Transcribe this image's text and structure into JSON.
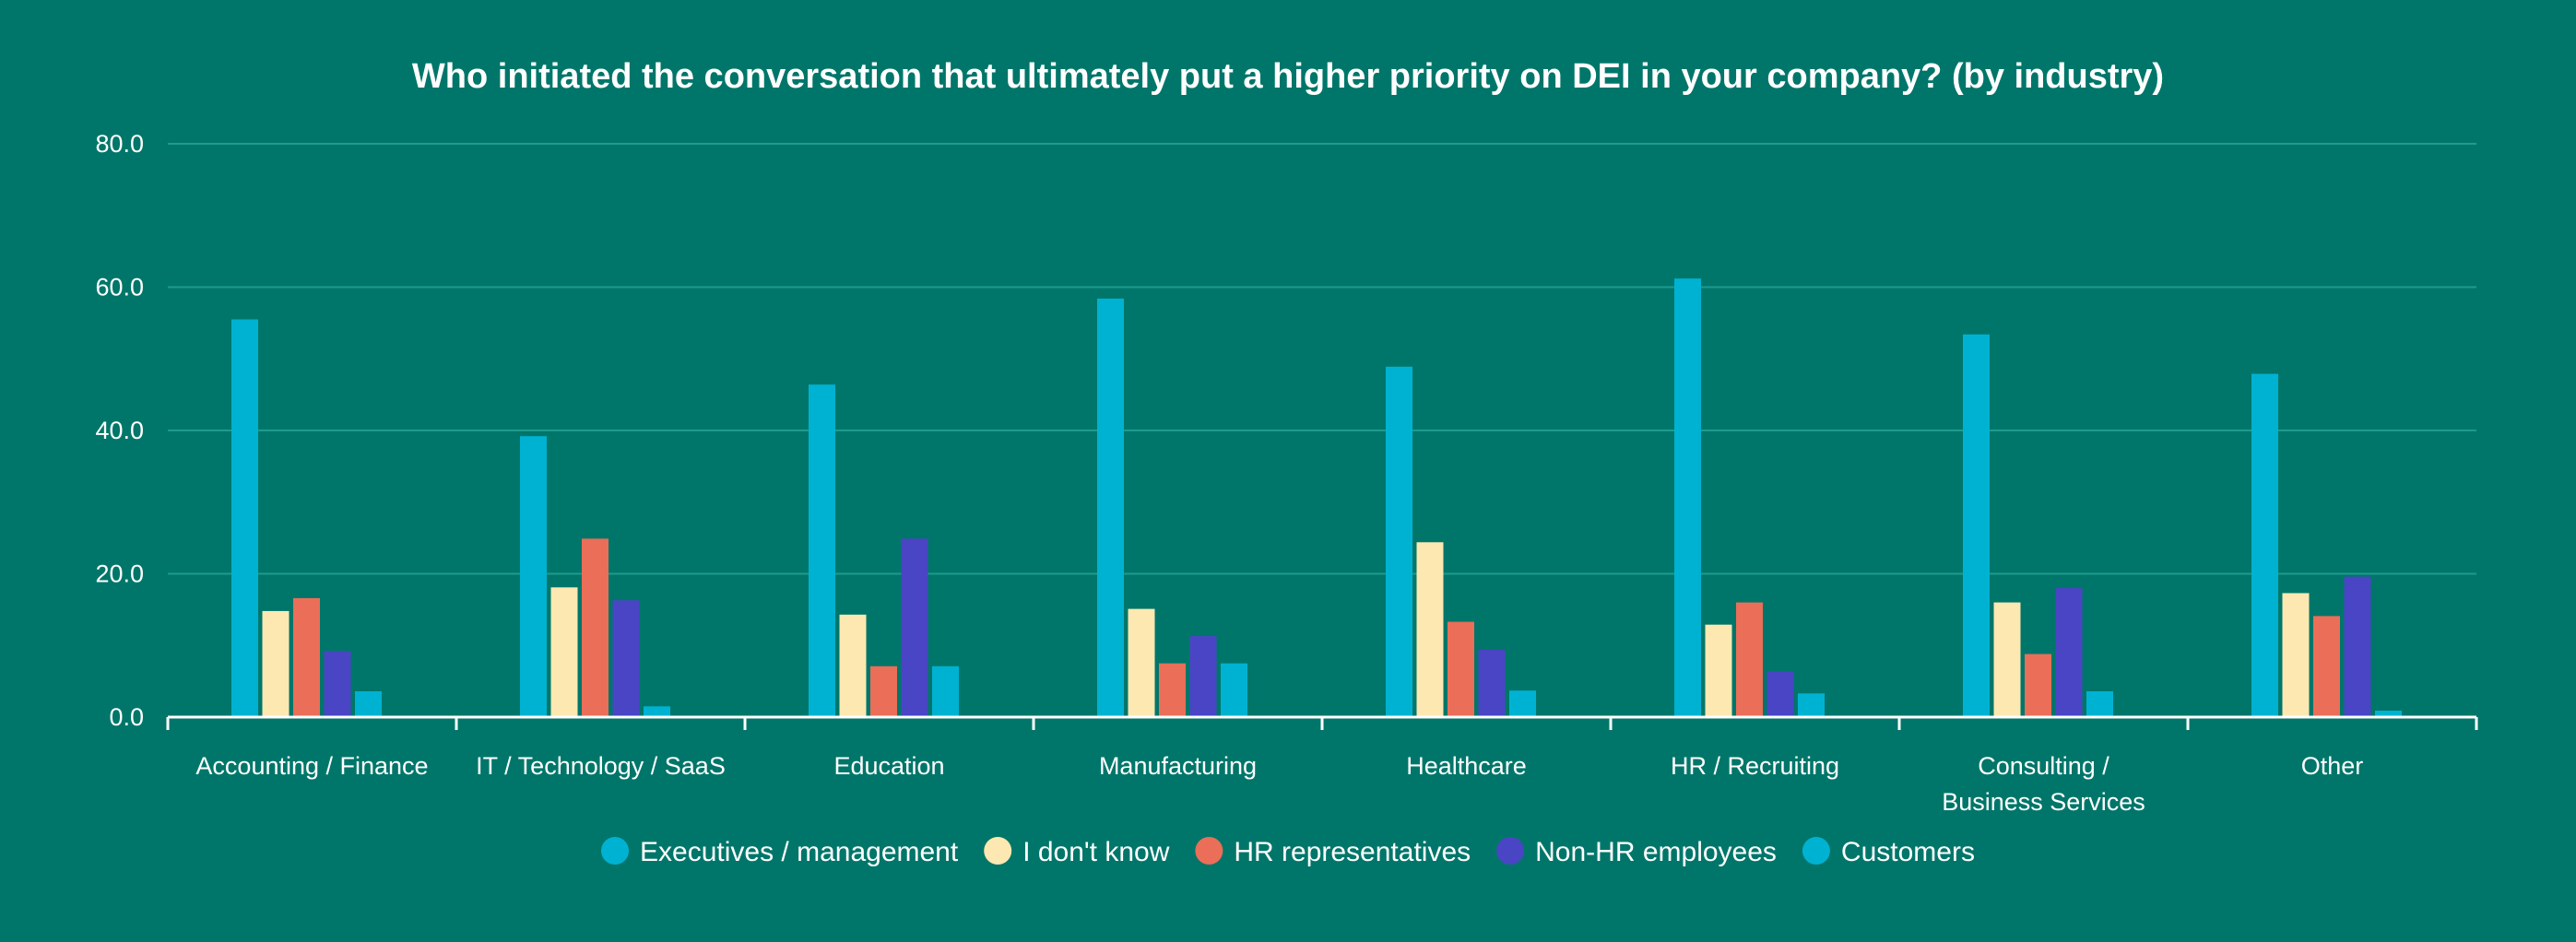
{
  "chart_data": {
    "type": "bar",
    "title": "Who initiated the conversation that ultimately put a higher priority on DEI in your company? (by industry)",
    "xlabel": "",
    "ylabel": "",
    "ylim": [
      0,
      80
    ],
    "yticks": [
      "0.0",
      "20.0",
      "40.0",
      "60.0",
      "80.0"
    ],
    "grid": true,
    "legend_position": "bottom",
    "categories": [
      [
        "Accounting / Finance"
      ],
      [
        "IT / Technology / SaaS"
      ],
      [
        "Education"
      ],
      [
        "Manufacturing"
      ],
      [
        "Healthcare"
      ],
      [
        "HR / Recruiting"
      ],
      [
        "Consulting /",
        "Business Services"
      ],
      [
        "Other"
      ]
    ],
    "series": [
      {
        "name": "Executives / management",
        "color": "#00b2d2",
        "values": [
          55.5,
          39.2,
          46.4,
          58.4,
          48.9,
          61.2,
          53.4,
          47.9
        ]
      },
      {
        "name": "I don't know",
        "color": "#fde8b1",
        "values": [
          14.8,
          18.1,
          14.3,
          15.1,
          24.4,
          12.9,
          16.0,
          17.3
        ]
      },
      {
        "name": "HR representatives",
        "color": "#ea6e58",
        "values": [
          16.6,
          24.9,
          7.1,
          7.5,
          13.3,
          16.0,
          8.8,
          14.1
        ]
      },
      {
        "name": "Non-HR employees",
        "color": "#4a45c4",
        "values": [
          9.2,
          16.3,
          24.9,
          11.3,
          9.4,
          6.4,
          18.0,
          19.6
        ]
      },
      {
        "name": "Customers",
        "color": "#00b2d2",
        "values": [
          3.6,
          1.5,
          7.1,
          7.5,
          3.7,
          3.3,
          3.6,
          0.9
        ]
      }
    ],
    "colors": {
      "background": "#00766a",
      "gridline": "#1e9b8e",
      "axis": "#ffffff",
      "text": "#ffffff"
    }
  }
}
